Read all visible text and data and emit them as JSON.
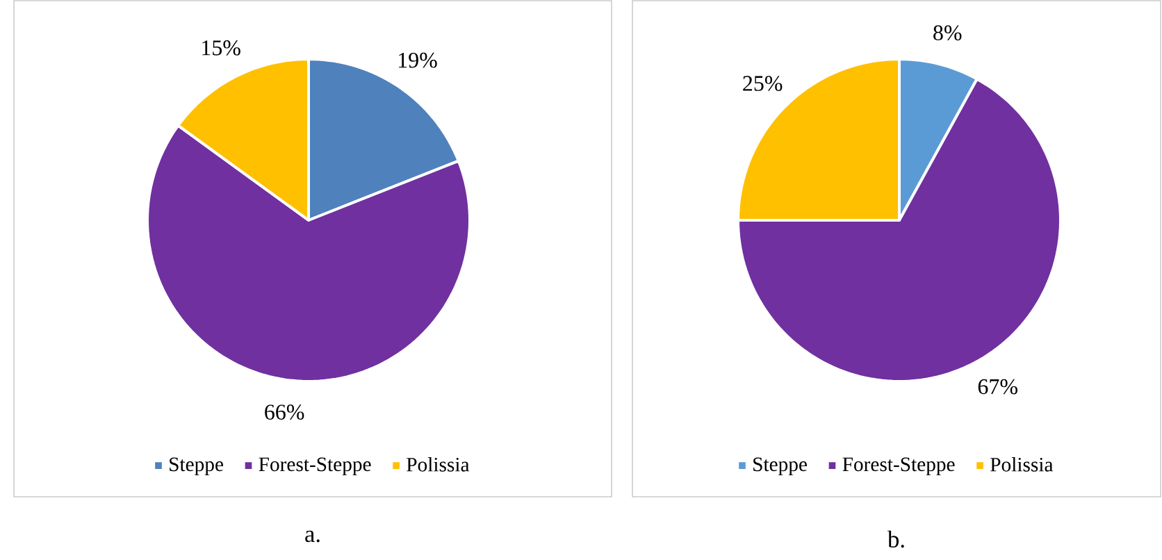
{
  "chart_data": [
    {
      "type": "pie",
      "categories": [
        "Steppe",
        "Forest-Steppe",
        "Polissia"
      ],
      "values": [
        19,
        66,
        15
      ],
      "colors": [
        "#4f81bd",
        "#7030a0",
        "#ffc000"
      ],
      "value_labels": [
        "19%",
        "66%",
        "15%"
      ],
      "legend": "bottom",
      "annotations": [
        "a."
      ]
    },
    {
      "type": "pie",
      "categories": [
        "Steppe",
        "Forest-Steppe",
        "Polissia"
      ],
      "values": [
        8,
        67,
        25
      ],
      "colors": [
        "#5b9bd5",
        "#7030a0",
        "#ffc000"
      ],
      "value_labels": [
        "8%",
        "67%",
        "25%"
      ],
      "legend": "bottom",
      "annotations": [
        "b."
      ]
    }
  ]
}
